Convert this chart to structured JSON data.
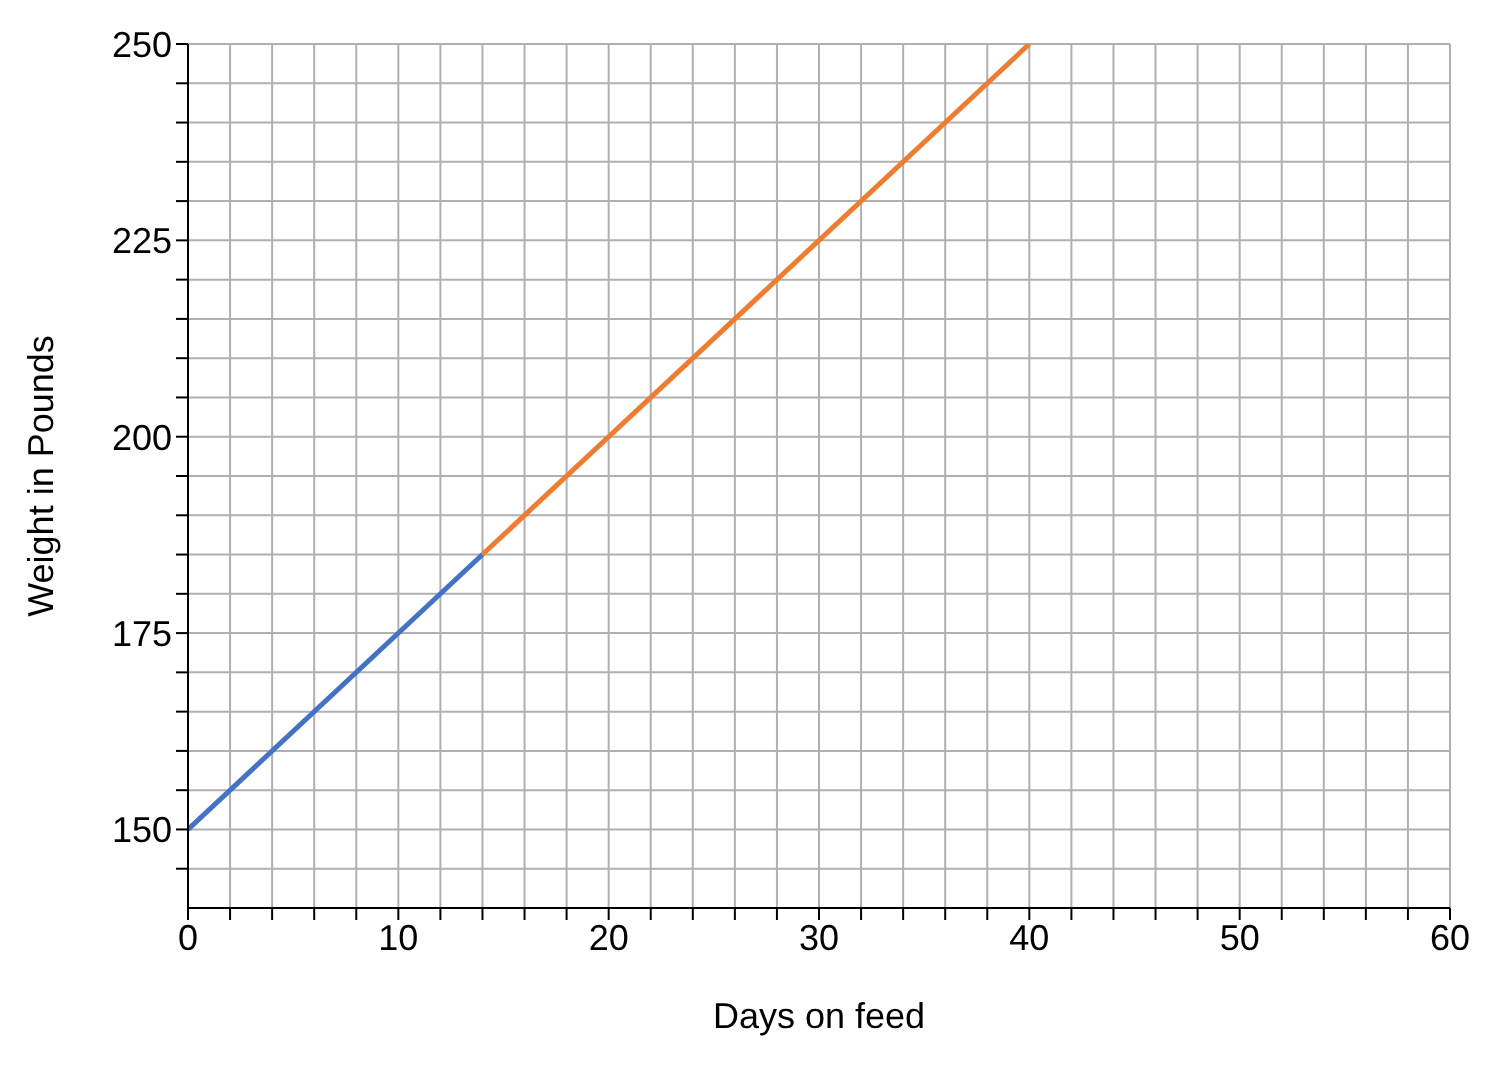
{
  "chart_data": {
    "type": "line",
    "xlabel": "Days on feed",
    "ylabel": "Weight in Pounds",
    "series": [
      {
        "color": "#4472c4",
        "x": [
          0,
          14
        ],
        "values": [
          150,
          185
        ]
      },
      {
        "color": "#ed7d31",
        "x": [
          14,
          40
        ],
        "values": [
          185,
          250
        ]
      }
    ],
    "xlim": [
      0,
      60
    ],
    "xticks": [
      0,
      {
        "value": 2,
        "label": null
      },
      {
        "value": 4,
        "label": null
      },
      {
        "value": 6,
        "label": null
      },
      {
        "value": 8,
        "label": null
      },
      10,
      {
        "value": 12,
        "label": null
      },
      {
        "value": 14,
        "label": null
      },
      {
        "value": 16,
        "label": null
      },
      {
        "value": 18,
        "label": null
      },
      20,
      {
        "value": 22,
        "label": null
      },
      {
        "value": 24,
        "label": null
      },
      {
        "value": 26,
        "label": null
      },
      {
        "value": 28,
        "label": null
      },
      30,
      {
        "value": 32,
        "label": null
      },
      {
        "value": 34,
        "label": null
      },
      {
        "value": 36,
        "label": null
      },
      {
        "value": 38,
        "label": null
      },
      40,
      {
        "value": 42,
        "label": null
      },
      {
        "value": 44,
        "label": null
      },
      {
        "value": 46,
        "label": null
      },
      {
        "value": 48,
        "label": null
      },
      50,
      {
        "value": 52,
        "label": null
      },
      {
        "value": 54,
        "label": null
      },
      {
        "value": 56,
        "label": null
      },
      {
        "value": 58,
        "label": null
      },
      60
    ],
    "ylim": [
      140,
      250
    ],
    "yticks": [
      {
        "value": 145,
        "label": null
      },
      150,
      {
        "value": 155,
        "label": null
      },
      {
        "value": 160,
        "label": null
      },
      {
        "value": 165,
        "label": null
      },
      {
        "value": 170,
        "label": null
      },
      175,
      {
        "value": 180,
        "label": null
      },
      {
        "value": 185,
        "label": null
      },
      {
        "value": 190,
        "label": null
      },
      {
        "value": 195,
        "label": null
      },
      200,
      {
        "value": 205,
        "label": null
      },
      {
        "value": 210,
        "label": null
      },
      {
        "value": 215,
        "label": null
      },
      {
        "value": 220,
        "label": null
      },
      225,
      {
        "value": 230,
        "label": null
      },
      {
        "value": 235,
        "label": null
      },
      {
        "value": 240,
        "label": null
      },
      {
        "value": 245,
        "label": null
      },
      250
    ],
    "grid": true,
    "marker": "none",
    "line_style": "solid"
  }
}
